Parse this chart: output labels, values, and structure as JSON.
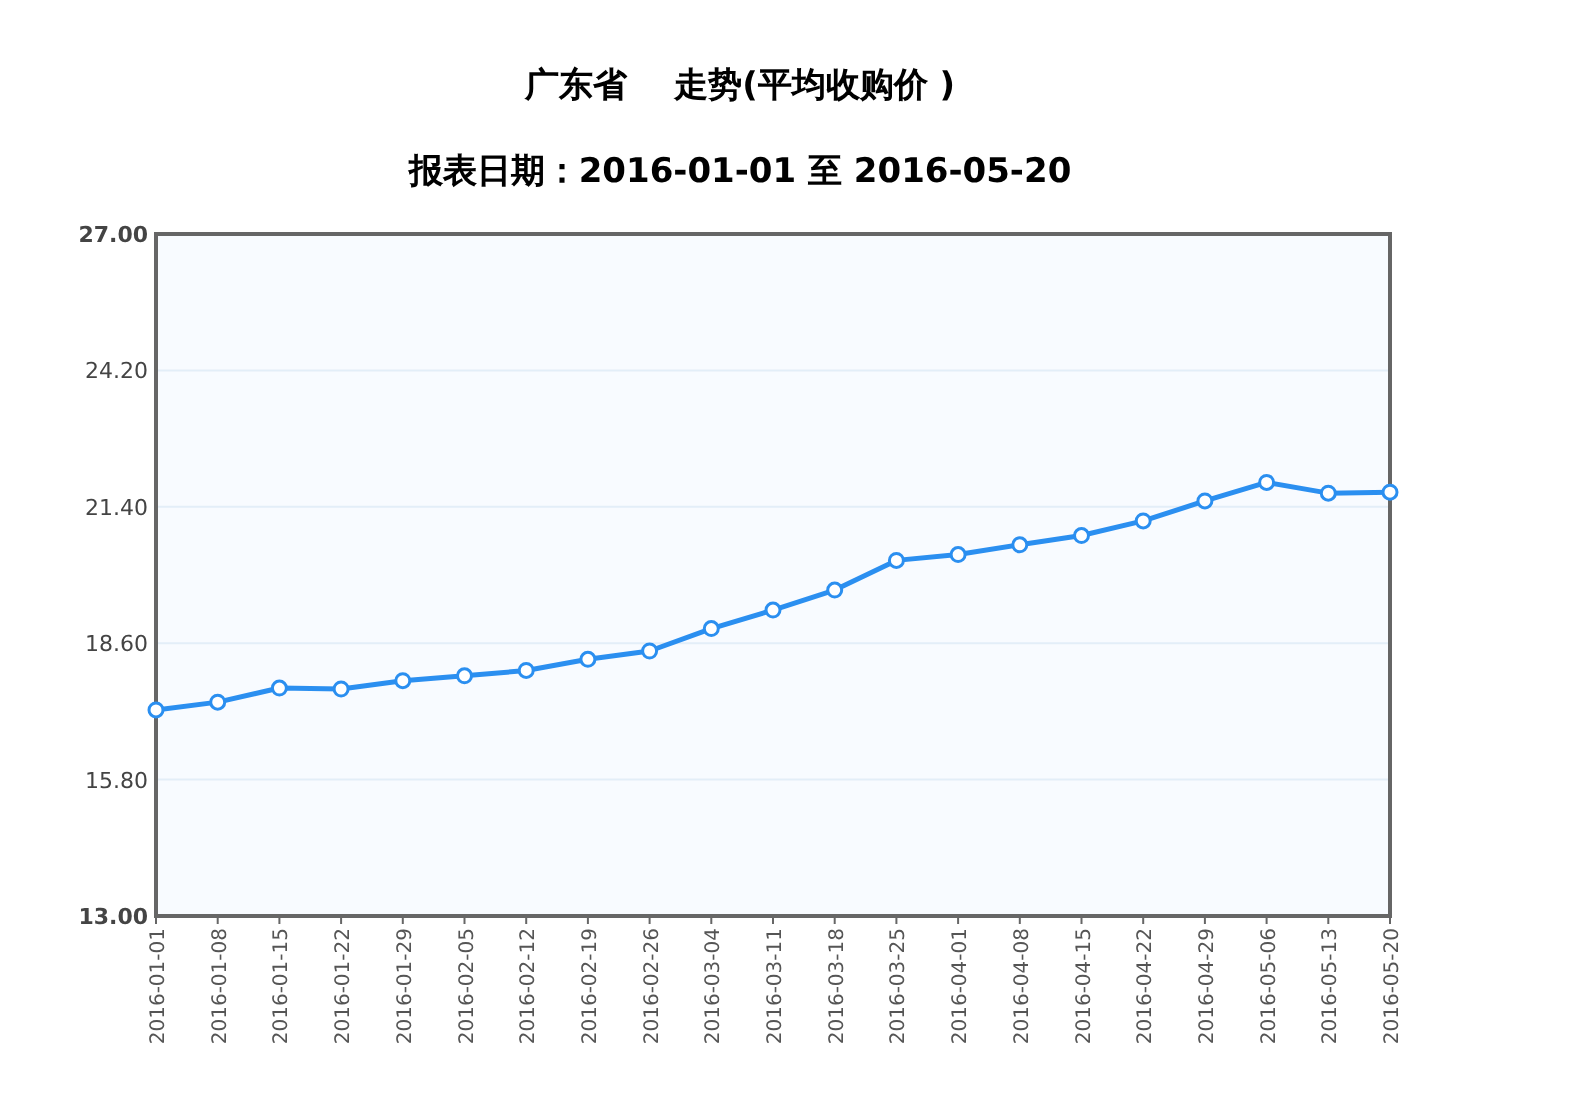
{
  "chart_data": {
    "type": "line",
    "title": "广东省    走势(平均收购价 )",
    "subtitle": "报表日期：2016-01-01 至 2016-05-20",
    "categories": [
      "2016-01-01",
      "2016-01-08",
      "2016-01-15",
      "2016-01-22",
      "2016-01-29",
      "2016-02-05",
      "2016-02-12",
      "2016-02-19",
      "2016-02-26",
      "2016-03-04",
      "2016-03-11",
      "2016-03-18",
      "2016-03-25",
      "2016-04-01",
      "2016-04-08",
      "2016-04-15",
      "2016-04-22",
      "2016-04-29",
      "2016-05-06",
      "2016-05-13",
      "2016-05-20"
    ],
    "series": [
      {
        "color": "#2b8ff0",
        "values": [
          17.23,
          17.39,
          17.68,
          17.66,
          17.83,
          17.93,
          18.04,
          18.27,
          18.44,
          18.9,
          19.28,
          19.69,
          20.3,
          20.42,
          20.62,
          20.81,
          21.11,
          21.52,
          21.9,
          21.68,
          21.7
        ]
      }
    ],
    "ylim": [
      13,
      27
    ],
    "yticks": [
      {
        "value": 13,
        "label": "13.00"
      },
      {
        "value": 15.8,
        "label": "15.80"
      },
      {
        "value": 18.6,
        "label": "18.60"
      },
      {
        "value": 21.4,
        "label": "21.40"
      },
      {
        "value": 24.2,
        "label": "24.20"
      },
      {
        "value": 27,
        "label": "27.00"
      }
    ],
    "grid": "y",
    "marker": "circle"
  }
}
